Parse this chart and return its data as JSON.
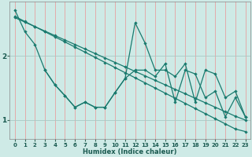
{
  "xlabel": "Humidex (Indice chaleur)",
  "background_color": "#ceeae6",
  "grid_color_v": "#e8a0a0",
  "line_color": "#1a7a6e",
  "xlim": [
    -0.5,
    23.5
  ],
  "ylim": [
    0.7,
    2.85
  ],
  "yticks": [
    1,
    2
  ],
  "xticks": [
    0,
    1,
    2,
    3,
    4,
    5,
    6,
    7,
    8,
    9,
    10,
    11,
    12,
    13,
    14,
    15,
    16,
    17,
    18,
    19,
    20,
    21,
    22,
    23
  ],
  "line1_x": [
    0,
    1,
    2,
    3,
    4,
    5,
    6,
    7,
    8,
    9,
    10,
    11,
    12,
    13,
    14,
    15,
    16,
    17,
    18,
    19,
    20,
    21,
    22,
    23
  ],
  "line1_y": [
    2.62,
    2.54,
    2.46,
    2.38,
    2.3,
    2.22,
    2.14,
    2.06,
    1.98,
    1.9,
    1.82,
    1.74,
    1.66,
    1.58,
    1.5,
    1.42,
    1.34,
    1.26,
    1.18,
    1.1,
    1.02,
    0.94,
    0.86,
    0.82
  ],
  "line2_x": [
    0,
    1,
    2,
    3,
    4,
    5,
    6,
    7,
    8,
    9,
    10,
    11,
    12,
    13,
    14,
    15,
    16,
    17,
    18,
    19,
    20,
    21,
    22,
    23
  ],
  "line2_y": [
    2.6,
    2.53,
    2.46,
    2.39,
    2.32,
    2.25,
    2.18,
    2.11,
    2.04,
    1.97,
    1.9,
    1.83,
    1.76,
    1.69,
    1.62,
    1.55,
    1.48,
    1.41,
    1.34,
    1.27,
    1.2,
    1.13,
    1.06,
    1.0
  ],
  "line3_x": [
    0,
    1,
    2,
    3,
    4,
    5,
    6,
    7,
    8,
    9,
    10,
    11,
    12,
    13,
    14,
    15,
    16,
    17,
    18,
    19,
    20,
    21,
    22,
    23
  ],
  "line3_y": [
    2.72,
    2.38,
    2.18,
    1.78,
    1.55,
    1.38,
    1.2,
    1.28,
    1.2,
    1.2,
    1.43,
    1.65,
    2.52,
    2.2,
    1.78,
    1.78,
    1.68,
    1.88,
    1.28,
    1.78,
    1.72,
    1.35,
    1.45,
    1.05
  ],
  "line4_x": [
    3,
    4,
    5,
    6,
    7,
    8,
    9,
    10,
    11,
    12,
    13,
    14,
    15,
    16,
    17,
    18,
    19,
    20,
    21,
    22,
    23
  ],
  "line4_y": [
    1.78,
    1.55,
    1.38,
    1.2,
    1.28,
    1.2,
    1.2,
    1.43,
    1.65,
    1.78,
    1.78,
    1.68,
    1.88,
    1.28,
    1.78,
    1.72,
    1.35,
    1.45,
    1.05,
    1.35,
    1.05
  ]
}
